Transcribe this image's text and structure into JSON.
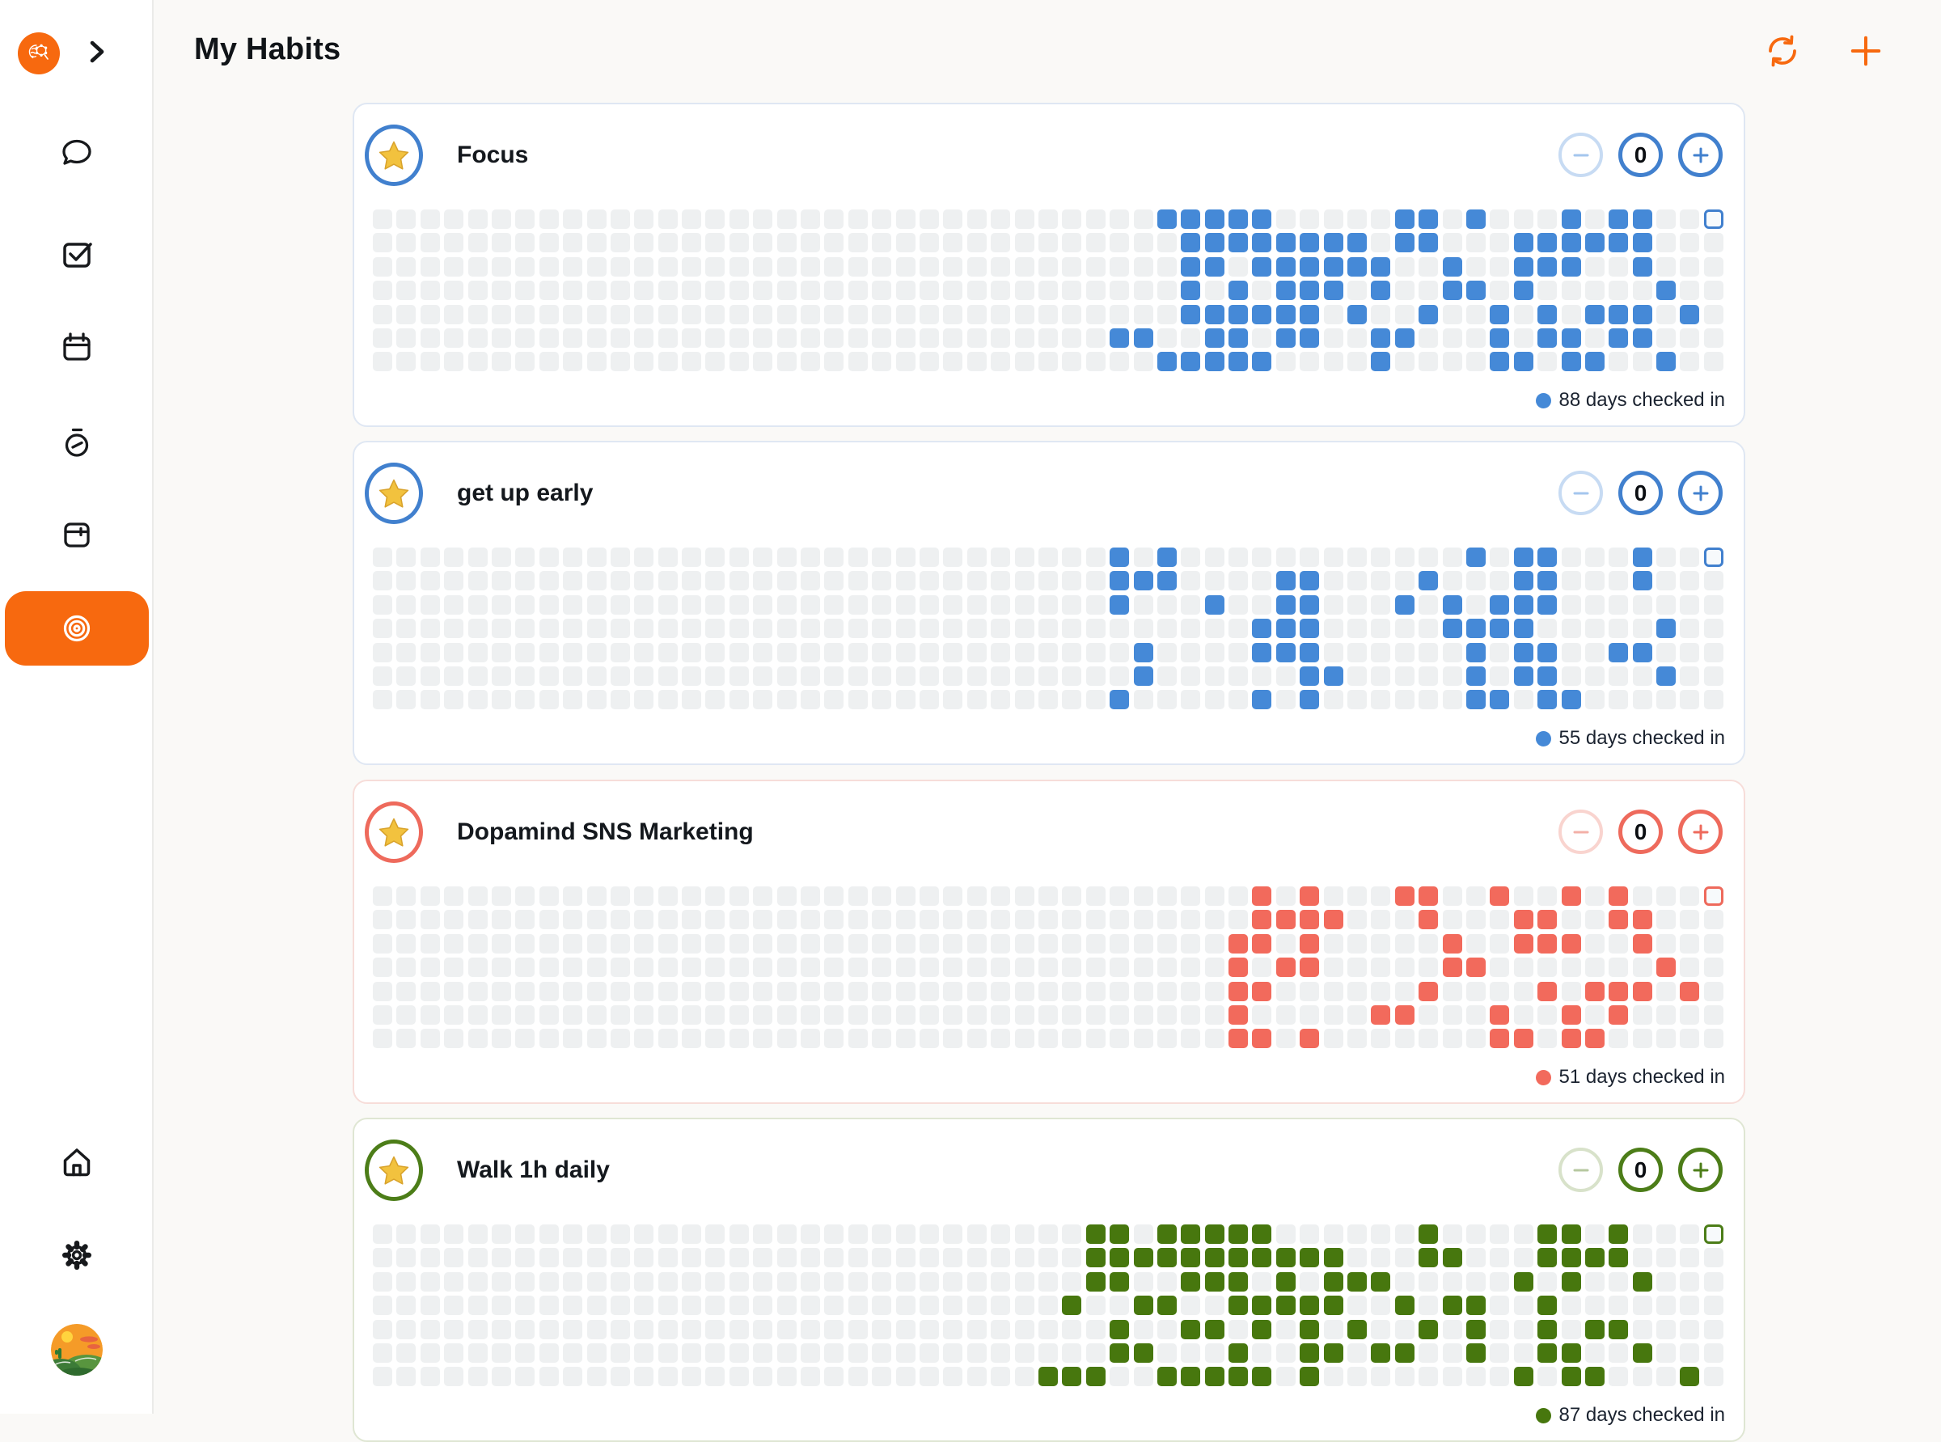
{
  "header": {
    "title": "My Habits"
  },
  "sidebar": {
    "logo": "dopamind-brain-logo",
    "collapse": "chevron-right",
    "items": [
      {
        "id": "chat",
        "icon": "chat-bubble-icon"
      },
      {
        "id": "tasks",
        "icon": "check-square-icon"
      },
      {
        "id": "calendar",
        "icon": "calendar-icon"
      },
      {
        "id": "timer",
        "icon": "stopwatch-icon"
      },
      {
        "id": "archive",
        "icon": "storage-box-icon"
      },
      {
        "id": "habits",
        "icon": "target-icon",
        "active": true
      }
    ],
    "bottom_items": [
      {
        "id": "home",
        "icon": "home-icon"
      },
      {
        "id": "settings",
        "icon": "gear-icon"
      },
      {
        "id": "profile",
        "icon": "avatar-image"
      }
    ],
    "accent": "#f7690f"
  },
  "habits": [
    {
      "name": "Focus",
      "count": "0",
      "days_count": 88,
      "days_label": "88 days checked in",
      "theme": {
        "cell": "#4589d7",
        "ring": "#4180ce",
        "pale": "#c7dbf3",
        "glyph": "#a4c6ee",
        "cardborder": "#dfe7f3"
      },
      "grid": {
        "cols": 57,
        "row_count": 7,
        "today": {
          "row": 0,
          "col": 56
        },
        "rows": [
          [
            33,
            34,
            35,
            36,
            37,
            43,
            44,
            46,
            50,
            52,
            53
          ],
          [
            34,
            35,
            36,
            37,
            38,
            39,
            40,
            41,
            43,
            44,
            48,
            49,
            50,
            51,
            52,
            53
          ],
          [
            34,
            35,
            37,
            38,
            39,
            40,
            41,
            42,
            45,
            48,
            49,
            50,
            53
          ],
          [
            34,
            36,
            38,
            39,
            40,
            42,
            45,
            46,
            48,
            54
          ],
          [
            34,
            35,
            36,
            37,
            38,
            39,
            41,
            44,
            47,
            49,
            51,
            52,
            53,
            55
          ],
          [
            31,
            32,
            35,
            36,
            38,
            39,
            42,
            43,
            47,
            49,
            50,
            52,
            53
          ],
          [
            33,
            34,
            35,
            36,
            37,
            42,
            47,
            48,
            50,
            51,
            54
          ]
        ]
      }
    },
    {
      "name": "get up early",
      "count": "0",
      "days_count": 55,
      "days_label": "55 days checked in",
      "theme": {
        "cell": "#4589d7",
        "ring": "#4180ce",
        "pale": "#c7dbf3",
        "glyph": "#a4c6ee",
        "cardborder": "#dfe7f3"
      },
      "grid": {
        "cols": 57,
        "row_count": 7,
        "today": {
          "row": 0,
          "col": 56
        },
        "rows": [
          [
            31,
            33,
            46,
            48,
            49,
            53
          ],
          [
            31,
            32,
            33,
            38,
            39,
            44,
            48,
            49,
            53
          ],
          [
            31,
            35,
            38,
            39,
            43,
            45,
            47,
            48,
            49
          ],
          [
            37,
            38,
            39,
            45,
            46,
            47,
            48,
            54
          ],
          [
            32,
            37,
            38,
            39,
            46,
            48,
            49,
            52,
            53
          ],
          [
            32,
            39,
            40,
            46,
            48,
            49,
            54
          ],
          [
            31,
            37,
            39,
            46,
            47,
            49,
            50
          ]
        ]
      }
    },
    {
      "name": "Dopamind SNS Marketing",
      "count": "0",
      "days_count": 51,
      "days_label": "51 days checked in",
      "theme": {
        "cell": "#f26a5c",
        "ring": "#ee6a5c",
        "pale": "#f9d4cf",
        "glyph": "#f3b0a8",
        "cardborder": "#f7ddd9"
      },
      "grid": {
        "cols": 57,
        "row_count": 7,
        "today": {
          "row": 0,
          "col": 56
        },
        "rows": [
          [
            37,
            39,
            43,
            44,
            47,
            50,
            52
          ],
          [
            37,
            38,
            39,
            40,
            44,
            48,
            49,
            52,
            53
          ],
          [
            36,
            37,
            39,
            45,
            48,
            49,
            50,
            53
          ],
          [
            36,
            38,
            39,
            45,
            46,
            54
          ],
          [
            36,
            37,
            44,
            49,
            51,
            52,
            53,
            55
          ],
          [
            36,
            42,
            43,
            47,
            50,
            52
          ],
          [
            36,
            37,
            39,
            47,
            48,
            50,
            51
          ]
        ]
      }
    },
    {
      "name": "Walk 1h daily",
      "count": "0",
      "days_count": 87,
      "days_label": "87 days checked in",
      "theme": {
        "cell": "#47770e",
        "ring": "#4c7d18",
        "pale": "#d8e2ca",
        "glyph": "#b7c8a0",
        "cardborder": "#dfe6d3"
      },
      "grid": {
        "cols": 57,
        "row_count": 7,
        "today": {
          "row": 0,
          "col": 56
        },
        "rows": [
          [
            30,
            31,
            33,
            34,
            35,
            36,
            37,
            44,
            49,
            50,
            52
          ],
          [
            30,
            31,
            32,
            33,
            34,
            35,
            36,
            37,
            38,
            39,
            40,
            44,
            45,
            49,
            50,
            51,
            52
          ],
          [
            30,
            31,
            34,
            35,
            36,
            38,
            40,
            41,
            42,
            48,
            50,
            53
          ],
          [
            29,
            32,
            33,
            36,
            37,
            38,
            39,
            40,
            43,
            45,
            46,
            49
          ],
          [
            31,
            34,
            35,
            37,
            39,
            41,
            44,
            46,
            49,
            51,
            52
          ],
          [
            31,
            32,
            36,
            39,
            40,
            42,
            43,
            46,
            49,
            50,
            53
          ],
          [
            28,
            29,
            30,
            33,
            34,
            35,
            36,
            37,
            39,
            48,
            50,
            51,
            55
          ]
        ]
      }
    }
  ]
}
